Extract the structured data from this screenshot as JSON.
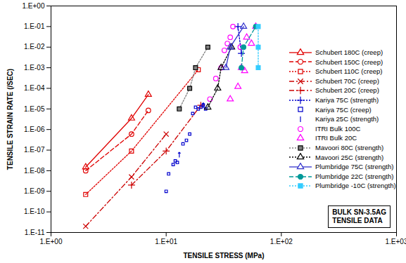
{
  "chart_data": {
    "type": "scatter",
    "x_label": "TENSILE STRESS (MPa)",
    "y_label": "TENSILE STRAIN RATE (/SEC)",
    "annotation": [
      "BULK SN-3.5AG",
      "TENSILE DATA"
    ],
    "log": true,
    "grid": false,
    "legend": "right",
    "xlim": [
      1,
      1000
    ],
    "xticks": [
      {
        "value": 1,
        "label": "1.E+00"
      },
      {
        "value": 10,
        "label": "1.E+01"
      },
      {
        "value": 100,
        "label": "1.E+02"
      },
      {
        "value": 1000,
        "label": "1.E+03"
      }
    ],
    "ylim": [
      1e-11,
      1
    ],
    "yticks": [
      {
        "value": 1e-11,
        "label": "1.E-11"
      },
      {
        "value": 1e-10,
        "label": "1.E-10"
      },
      {
        "value": 1e-09,
        "label": "1.E-09"
      },
      {
        "value": 1e-08,
        "label": "1.E-08"
      },
      {
        "value": 1e-07,
        "label": "1.E-07"
      },
      {
        "value": 1e-06,
        "label": "1.E-06"
      },
      {
        "value": 1e-05,
        "label": "1.E-05"
      },
      {
        "value": 0.0001,
        "label": "1.E-04"
      },
      {
        "value": 0.001,
        "label": "1.E-03"
      },
      {
        "value": 0.01,
        "label": "1.E-02"
      },
      {
        "value": 0.1,
        "label": "1.E-01"
      },
      {
        "value": 1,
        "label": "1.E+00"
      }
    ],
    "series": [
      {
        "name": "Schubert 180C (creep)",
        "color": "#e00000",
        "marker": "triangle",
        "line_style": "solid",
        "x": [
          2,
          5,
          7
        ],
        "values": [
          1.5e-08,
          3.5e-06,
          5e-05
        ]
      },
      {
        "name": "Schubert 150C (creep)",
        "color": "#e00000",
        "marker": "circle",
        "line_style": "dashed",
        "x": [
          2,
          5,
          7
        ],
        "values": [
          1e-08,
          6e-07,
          8.5e-06
        ]
      },
      {
        "name": "Schubert 110C (creep)",
        "color": "#e00000",
        "marker": "square",
        "line_style": "dotted",
        "x": [
          2,
          5,
          19
        ],
        "values": [
          7e-10,
          9e-08,
          0.0008
        ]
      },
      {
        "name": "Schubert 70C (creep)",
        "color": "#cc0000",
        "marker": "times",
        "line_style": "dashdot",
        "x": [
          2,
          5,
          10
        ],
        "values": [
          2e-11,
          5e-09,
          6e-07
        ]
      },
      {
        "name": "Schubert 20C (creep)",
        "color": "#cc0000",
        "marker": "plus",
        "line_style": "dashdot",
        "x": [
          5,
          10,
          20
        ],
        "values": [
          2e-09,
          9e-08,
          1.5e-05
        ]
      },
      {
        "name": "Kariya 75C (strength)",
        "color": "#0000cc",
        "marker": "plus",
        "line_style": "dotted",
        "x": [
          42,
          45
        ],
        "values": [
          0.1,
          0.005
        ]
      },
      {
        "name": "Kariya 75C (creep)",
        "color": "#0000cc",
        "marker": "square",
        "line_style": "none",
        "x": [
          10,
          10.5,
          11.5,
          12,
          12.5,
          14,
          15,
          16,
          17,
          18,
          19,
          20,
          21,
          22
        ],
        "values": [
          1e-09,
          7e-09,
          2e-08,
          3e-08,
          2.5e-08,
          2e-07,
          3e-07,
          6e-07,
          6e-06,
          1.2e-05,
          1e-05,
          1.2e-05,
          1.5e-05,
          1e-05
        ]
      },
      {
        "name": "Kariya 25C (strength)",
        "color": "#0000cc",
        "marker": "vline",
        "line_style": "none",
        "x": [
          13,
          21
        ],
        "values": [
          6e-08,
          1.5e-05
        ]
      },
      {
        "name": "ITRI Bulk 100C",
        "color": "#ff00ff",
        "marker": "circle",
        "line_style": "none",
        "x": [
          24,
          27,
          30,
          32,
          34,
          36,
          38,
          44
        ],
        "values": [
          3e-05,
          0.0003,
          0.001,
          0.007,
          0.015,
          0.03,
          0.1,
          0.01
        ]
      },
      {
        "name": "ITRI Bulk 20C",
        "color": "#ff00ff",
        "marker": "triangle",
        "line_style": "none",
        "x": [
          36,
          42,
          45,
          48,
          50,
          55,
          60
        ],
        "values": [
          3e-05,
          0.00012,
          0.001,
          0.0007,
          0.03,
          0.015,
          0.1
        ]
      },
      {
        "name": "Mavoori 80C (strength)",
        "color": "#808080",
        "marker": "square_filled",
        "line_style": "dotted",
        "x": [
          13,
          16,
          18,
          23
        ],
        "values": [
          1e-05,
          0.0001,
          0.001,
          0.01
        ]
      },
      {
        "name": "Mavoori 25C (strength)",
        "color": "#000000",
        "marker": "triangle",
        "line_style": "dotted",
        "x": [
          23,
          28,
          30,
          37
        ],
        "values": [
          1.2e-05,
          0.0001,
          0.001,
          0.01
        ]
      },
      {
        "name": "Plumbridge 75C (strength)",
        "color": "#3333cc",
        "marker": "triangle",
        "line_style": "solid",
        "x": [
          33,
          36,
          47
        ],
        "values": [
          0.001,
          0.01,
          0.1
        ]
      },
      {
        "name": "Plumbridge 22C (strength)",
        "color": "#009999",
        "marker": "circle_filled",
        "line_style": "dashed",
        "x": [
          45,
          47,
          60
        ],
        "values": [
          0.001,
          0.01,
          0.1
        ]
      },
      {
        "name": "Plumbridge -10C (strength)",
        "color": "#33ccff",
        "marker": "square_filled",
        "line_style": "dotted",
        "x": [
          63,
          63,
          63
        ],
        "values": [
          0.001,
          0.01,
          0.1
        ]
      }
    ]
  }
}
